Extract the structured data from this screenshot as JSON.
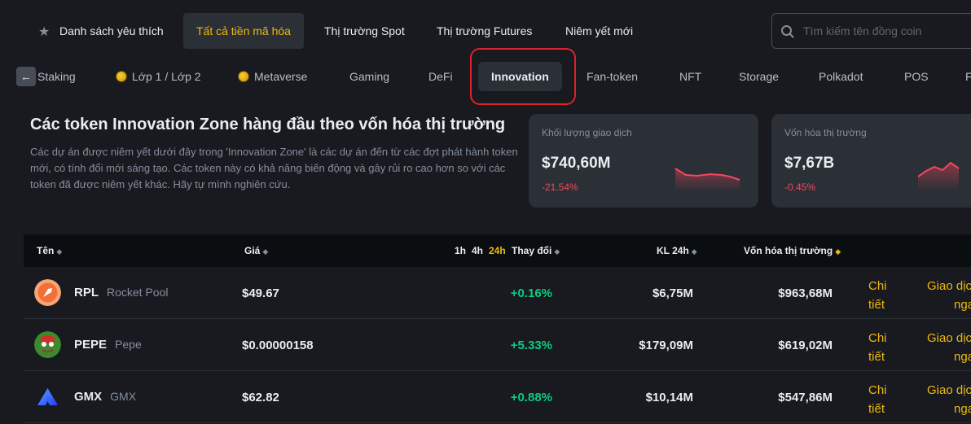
{
  "topnav": {
    "tabs": [
      {
        "label": "Danh sách yêu thích"
      },
      {
        "label": "Tất cả tiền mã hóa"
      },
      {
        "label": "Thị trường Spot"
      },
      {
        "label": "Thị trường Futures"
      },
      {
        "label": "Niêm yết mới"
      }
    ],
    "search_placeholder": "Tìm kiếm tên đồng coin"
  },
  "categories": [
    {
      "label": "Staking"
    },
    {
      "label": "Lớp 1 / Lớp 2"
    },
    {
      "label": "Metaverse"
    },
    {
      "label": "Gaming"
    },
    {
      "label": "DeFi"
    },
    {
      "label": "Innovation"
    },
    {
      "label": "Fan-token"
    },
    {
      "label": "NFT"
    },
    {
      "label": "Storage"
    },
    {
      "label": "Polkadot"
    },
    {
      "label": "POS"
    },
    {
      "label": "F"
    }
  ],
  "intro": {
    "title": "Các token Innovation Zone hàng đầu theo vốn hóa thị trường",
    "text": "Các dự án được niêm yết dưới đây trong 'Innovation Zone' là các dự án đến từ các đợt phát hành token mới, có tính đổi mới sáng tạo. Các token này có khả năng biến động và gây rủi ro cao hơn so với các token đã được niêm yết khác. Hãy tự mình nghiên cứu."
  },
  "cards": [
    {
      "label": "Khối lượng giao dịch",
      "value": "$740,60M",
      "change": "-21.54%"
    },
    {
      "label": "Vốn hóa thị trường",
      "value": "$7,67B",
      "change": "-0.45%"
    }
  ],
  "table": {
    "headers": {
      "name": "Tên",
      "price": "Giá",
      "p1": "1h",
      "p2": "4h",
      "p3": "24h",
      "change": "Thay đổi",
      "vol": "KL 24h",
      "cap": "Vốn hóa thị trường"
    },
    "rows": [
      {
        "symbol": "RPL",
        "name": "Rocket Pool",
        "price": "$49.67",
        "change": "+0.16%",
        "vol": "$6,75M",
        "cap": "$963,68M",
        "detail_1": "Chi",
        "detail_2": "tiết",
        "trade_1": "Giao dịch",
        "trade_2": "ngay"
      },
      {
        "symbol": "PEPE",
        "name": "Pepe",
        "price": "$0.00000158",
        "change": "+5.33%",
        "vol": "$179,09M",
        "cap": "$619,02M",
        "detail_1": "Chi",
        "detail_2": "tiết",
        "trade_1": "Giao dịch",
        "trade_2": "ngay"
      },
      {
        "symbol": "GMX",
        "name": "GMX",
        "price": "$62.82",
        "change": "+0.88%",
        "vol": "$10,14M",
        "cap": "$547,86M",
        "detail_1": "Chi",
        "detail_2": "tiết",
        "trade_1": "Giao dịch",
        "trade_2": "ngay"
      }
    ]
  }
}
